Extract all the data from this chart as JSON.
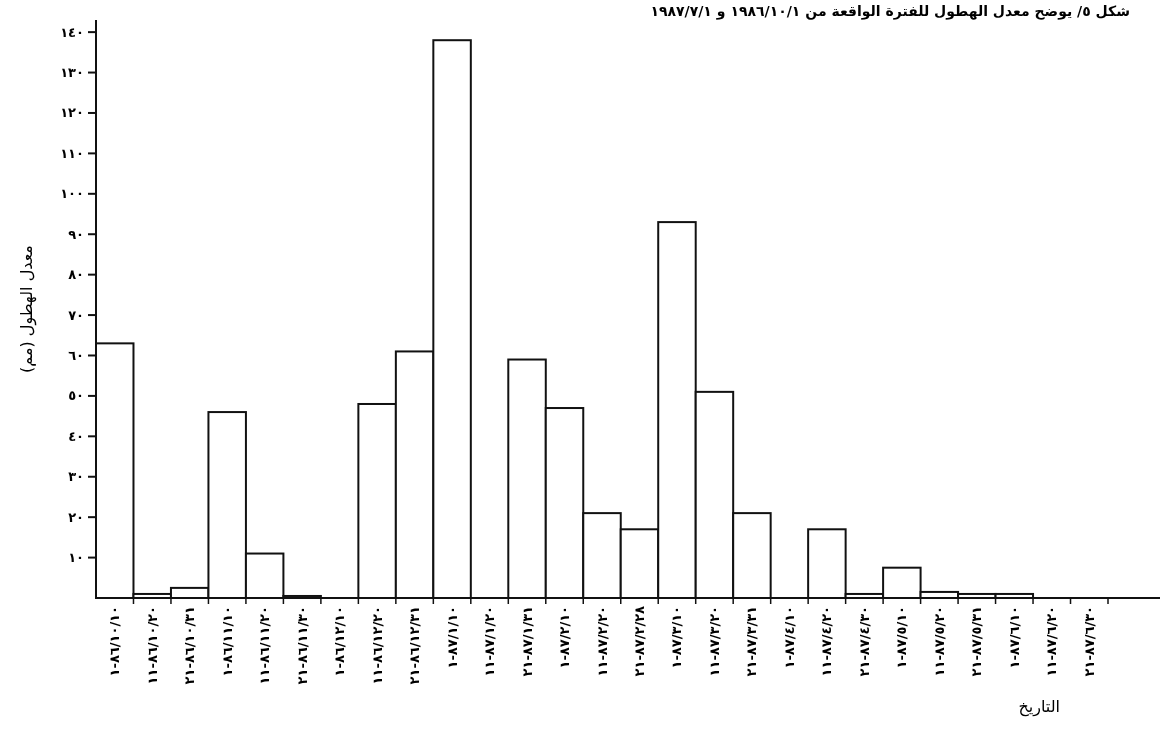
{
  "chart_data": {
    "type": "bar",
    "title": "شكل ٥/ يوضح معدل الهطول للفترة الواقعة من ١٩٨٦/١٠/١ و ١٩٨٧/٧/١",
    "xlabel": "التاريخ",
    "ylabel": "معدل الهطول (مم)",
    "categories": [
      "٨٦/١٠/١٠-١",
      "٨٦/١٠/٢٠-١١",
      "٨٦/١٠/٣١-٢١",
      "٨٦/١١/١٠-١",
      "٨٦/١١/٢٠-١١",
      "٨٦/١١/٣٠-٢١",
      "٨٦/١٢/١٠-١",
      "٨٦/١٢/٢٠-١١",
      "٨٦/١٢/٣١-٢١",
      "٨٧/١/١٠-١",
      "٨٧/١/٢٠-١١",
      "٨٧/١/٣١-٢١",
      "٨٧/٢/١٠-١",
      "٨٧/٢/٢٠-١١",
      "٨٧/٢/٢٨-٢١",
      "٨٧/٣/١٠-١",
      "٨٧/٣/٢٠-١١",
      "٨٧/٣/٣١-٢١",
      "٨٧/٤/١٠-١",
      "٨٧/٤/٢٠-١١",
      "٨٧/٤/٣٠-٢١",
      "٨٧/٥/١٠-١",
      "٨٧/٥/٢٠-١١",
      "٨٧/٥/٣١-٢١",
      "٨٧/٦/١٠-١",
      "٨٧/٦/٢٠-١١",
      "٨٧/٦/٣٠-٢١"
    ],
    "values": [
      63,
      1,
      2.5,
      46,
      11,
      0.5,
      0,
      48,
      61,
      138,
      0,
      59,
      47,
      21,
      17,
      93,
      51,
      21,
      0,
      17,
      1,
      7.5,
      1.5,
      1,
      1,
      0,
      0
    ],
    "color": "#ffffff",
    "ylim": [
      0,
      143
    ],
    "yticks": [
      {
        "value": 10,
        "label": "١٠"
      },
      {
        "value": 20,
        "label": "٢٠"
      },
      {
        "value": 30,
        "label": "٣٠"
      },
      {
        "value": 40,
        "label": "٤٠"
      },
      {
        "value": 50,
        "label": "٥٠"
      },
      {
        "value": 60,
        "label": "٦٠"
      },
      {
        "value": 70,
        "label": "٧٠"
      },
      {
        "value": 80,
        "label": "٨٠"
      },
      {
        "value": 90,
        "label": "٩٠"
      },
      {
        "value": 100,
        "label": "١٠٠"
      },
      {
        "value": 110,
        "label": "١١٠"
      },
      {
        "value": 120,
        "label": "١٢٠"
      },
      {
        "value": 130,
        "label": "١٣٠"
      },
      {
        "value": 140,
        "label": "١٤٠"
      }
    ]
  }
}
